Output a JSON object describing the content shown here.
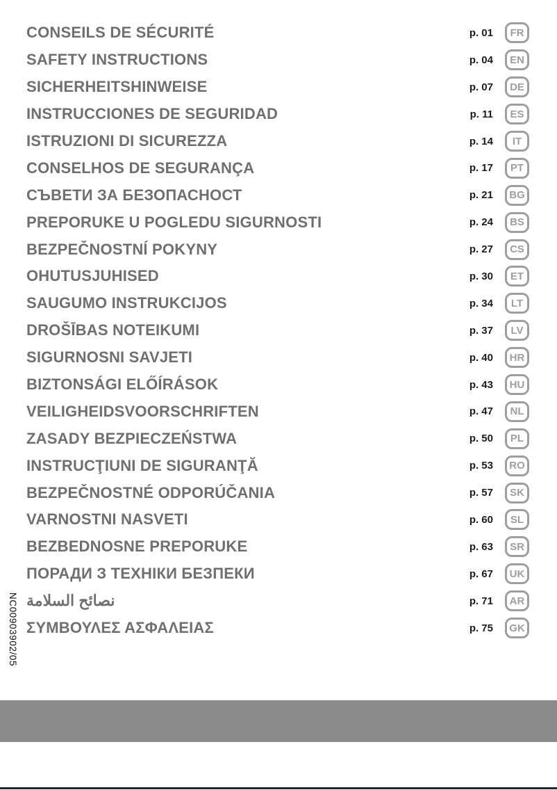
{
  "colors": {
    "title_gray": "#6f6f71",
    "page_number": "#1b1b1b",
    "badge_gray": "#9e9e9e",
    "bar_gray": "#8a8a8a",
    "bottom_line": "#20242e"
  },
  "sidebar_code": "NC00903902/05",
  "toc": {
    "rows": [
      {
        "title": "CONSEILS DE SÉCURITÉ",
        "page": "p. 01",
        "code": "FR"
      },
      {
        "title": "SAFETY INSTRUCTIONS",
        "page": "p. 04",
        "code": "EN"
      },
      {
        "title": "SICHERHEITSHINWEISE",
        "page": "p. 07",
        "code": "DE"
      },
      {
        "title": "INSTRUCCIONES DE SEGURIDAD",
        "page": "p. 11",
        "code": "ES"
      },
      {
        "title": "ISTRUZIONI DI SICUREZZA",
        "page": "p. 14",
        "code": "IT"
      },
      {
        "title": "CONSELHOS DE SEGURANÇA",
        "page": "p. 17",
        "code": "PT"
      },
      {
        "title": "СЪВЕТИ ЗА БЕЗОПАСНОСТ",
        "page": "p. 21",
        "code": "BG"
      },
      {
        "title": "PREPORUKE U POGLEDU SIGURNOSTI",
        "page": "p. 24",
        "code": "BS"
      },
      {
        "title": "BEZPEČNOSTNÍ POKYNY",
        "page": "p. 27",
        "code": "CS"
      },
      {
        "title": "OHUTUSJUHISED",
        "page": "p. 30",
        "code": "ET"
      },
      {
        "title": "SAUGUMO INSTRUKCIJOS",
        "page": "p. 34",
        "code": "LT"
      },
      {
        "title": "DROŠĪBAS NOTEIKUMI",
        "page": "p. 37",
        "code": "LV"
      },
      {
        "title": "SIGURNOSNI SAVJETI",
        "page": "p. 40",
        "code": "HR"
      },
      {
        "title": "BIZTONSÁGI ELŐÍRÁSOK",
        "page": "p. 43",
        "code": "HU"
      },
      {
        "title": "VEILIGHEIDSVOORSCHRIFTEN",
        "page": "p. 47",
        "code": "NL"
      },
      {
        "title": "ZASADY BEZPIECZEŃSTWA",
        "page": "p. 50",
        "code": "PL"
      },
      {
        "title": "INSTRUCŢIUNI DE SIGURANŢĂ",
        "page": "p. 53",
        "code": "RO"
      },
      {
        "title": "BEZPEČNOSTNÉ ODPORÚČANIA",
        "page": "p. 57",
        "code": "SK"
      },
      {
        "title": "VARNOSTNI NASVETI",
        "page": "p. 60",
        "code": "SL"
      },
      {
        "title": "BEZBEDNOSNE PREPORUKE",
        "page": "p. 63",
        "code": "SR"
      },
      {
        "title": "ПОРАДИ З ТЕХНІКИ БЕЗПЕКИ",
        "page": "p. 67",
        "code": "UK"
      },
      {
        "title": "نصائح السلامة",
        "page": "p. 71",
        "code": "AR"
      },
      {
        "title": "ΣΥΜΒΟΥΛΕΣ ΑΣΦΑΛΕΙΑΣ",
        "page": "p. 75",
        "code": "GK"
      }
    ]
  }
}
